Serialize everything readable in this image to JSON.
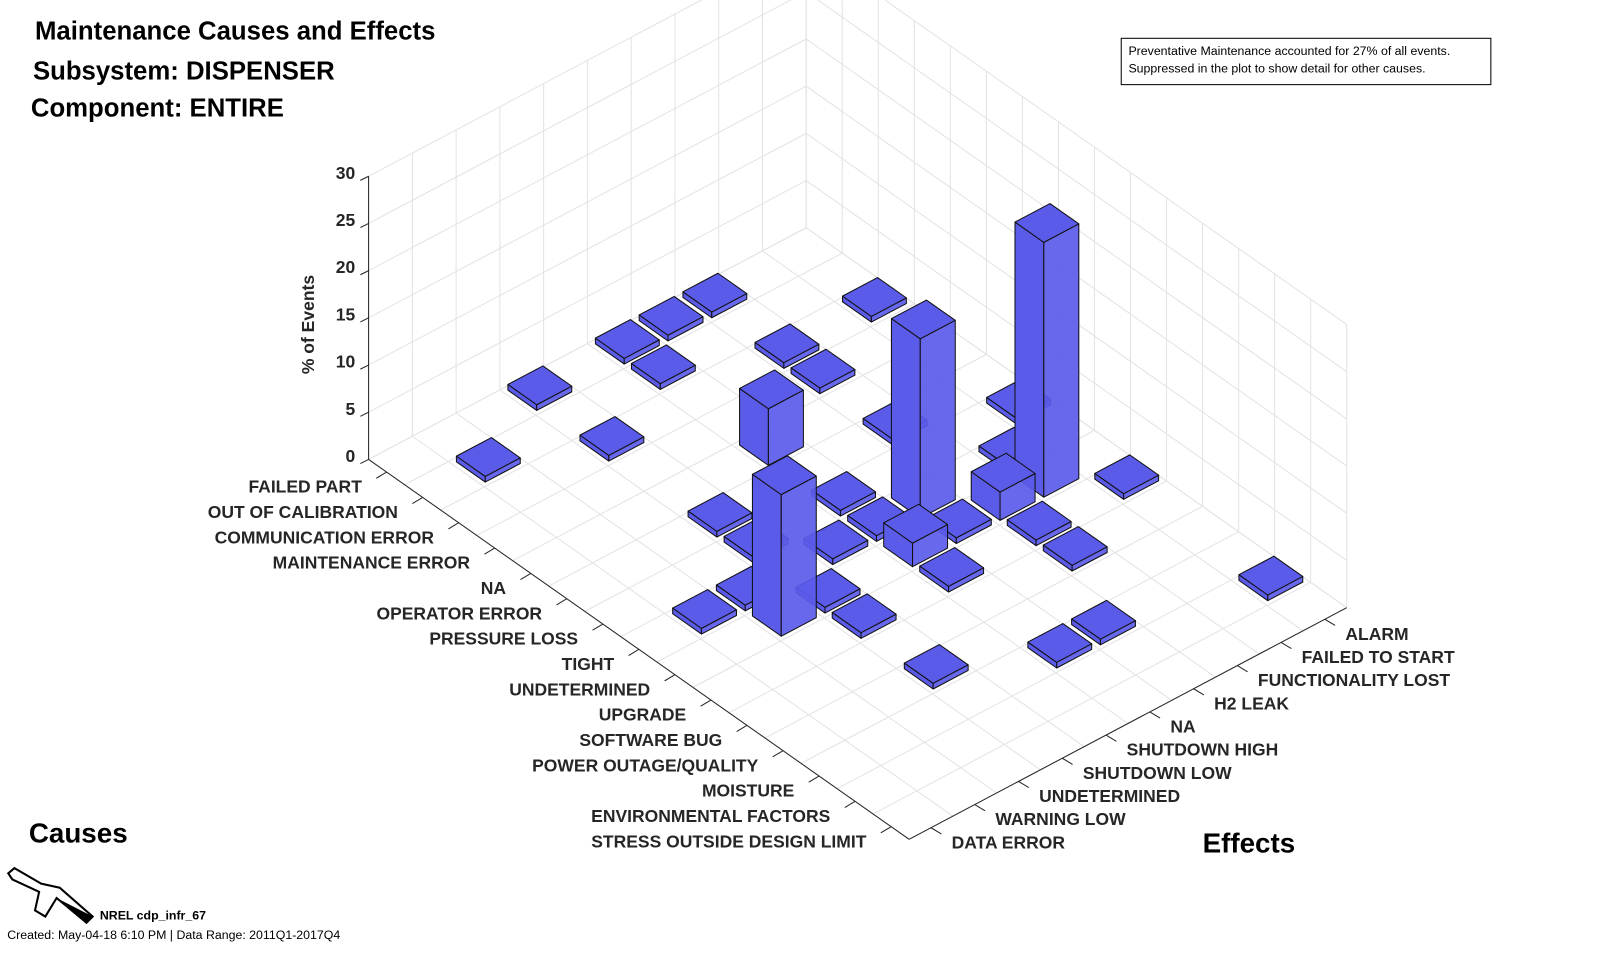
{
  "chart_data": {
    "type": "bar3d",
    "title": [
      "Maintenance Causes and Effects",
      "Subsystem: DISPENSER",
      "Component: ENTIRE"
    ],
    "annotation": [
      "Preventative Maintenance accounted for 27% of all events.",
      "Suppressed in the plot to show detail for other causes."
    ],
    "zlabel": "% of Events",
    "xlabel": "Causes",
    "ylabel": "Effects",
    "causes": [
      "FAILED PART",
      "OUT OF CALIBRATION",
      "COMMUNICATION ERROR",
      "MAINTENANCE ERROR",
      "NA",
      "OPERATOR ERROR",
      "PRESSURE LOSS",
      "TIGHT",
      "UNDETERMINED",
      "UPGRADE",
      "SOFTWARE BUG",
      "POWER OUTAGE/QUALITY",
      "MOISTURE",
      "ENVIRONMENTAL FACTORS",
      "STRESS OUTSIDE DESIGN LIMIT"
    ],
    "effects": [
      "ALARM",
      "FAILED TO START",
      "FUNCTIONALITY LOST",
      "H2 LEAK",
      "NA",
      "SHUTDOWN HIGH",
      "SHUTDOWN LOW",
      "UNDETERMINED",
      "WARNING LOW",
      "DATA ERROR"
    ],
    "values": [
      [
        null,
        null,
        0.6,
        0.6,
        0.6,
        null,
        0.6,
        null,
        null,
        null
      ],
      [
        null,
        null,
        null,
        null,
        0.6,
        null,
        null,
        null,
        0.6,
        null
      ],
      [
        0.6,
        null,
        0.6,
        null,
        null,
        null,
        0.6,
        null,
        null,
        null
      ],
      [
        null,
        null,
        0.6,
        null,
        null,
        null,
        null,
        null,
        null,
        null
      ],
      [
        null,
        null,
        null,
        null,
        6,
        null,
        null,
        null,
        null,
        null
      ],
      [
        null,
        null,
        0.6,
        null,
        null,
        null,
        0.6,
        null,
        null,
        null
      ],
      [
        0.6,
        null,
        null,
        null,
        0.6,
        null,
        0.6,
        null,
        null,
        null
      ],
      [
        null,
        0.6,
        null,
        19,
        0.6,
        0.6,
        null,
        0.6,
        0.6,
        null
      ],
      [
        null,
        27,
        3,
        0.6,
        2.5,
        null,
        0.6,
        15,
        null,
        null
      ],
      [
        0.6,
        null,
        0.6,
        null,
        0.6,
        null,
        0.6,
        null,
        null,
        null
      ],
      [
        null,
        null,
        0.6,
        null,
        null,
        null,
        null,
        null,
        null,
        null
      ],
      [
        null,
        null,
        null,
        null,
        null,
        null,
        0.6,
        null,
        null,
        null
      ],
      [
        null,
        null,
        null,
        0.6,
        0.6,
        null,
        null,
        null,
        null,
        null
      ],
      [
        0.6,
        null,
        null,
        null,
        null,
        null,
        null,
        null,
        null,
        null
      ],
      [
        null,
        null,
        null,
        null,
        null,
        null,
        null,
        null,
        null,
        null
      ]
    ],
    "zlim": [
      0,
      30
    ],
    "zticks": [
      0,
      5,
      10,
      15,
      20,
      25,
      30
    ],
    "color": "#5b5bea",
    "grid": true
  },
  "footer": {
    "id": "NREL cdp_infr_67",
    "created": "Created: May-04-18  6:10 PM | Data Range: 2011Q1-2017Q4"
  }
}
